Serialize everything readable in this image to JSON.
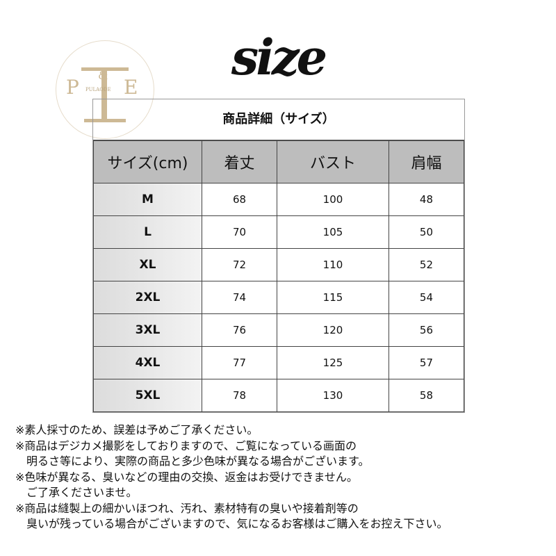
{
  "title": "size",
  "logo": {
    "letters": [
      "P",
      "&",
      "E"
    ],
    "brand": "PULAODE"
  },
  "table": {
    "caption": "商品詳細（サイズ）",
    "headers": [
      "サイズ(cm)",
      "着丈",
      "バスト",
      "肩幅"
    ],
    "rows": [
      [
        "M",
        "68",
        "100",
        "48"
      ],
      [
        "L",
        "70",
        "105",
        "50"
      ],
      [
        "XL",
        "72",
        "110",
        "52"
      ],
      [
        "2XL",
        "74",
        "115",
        "54"
      ],
      [
        "3XL",
        "76",
        "120",
        "56"
      ],
      [
        "4XL",
        "77",
        "125",
        "57"
      ],
      [
        "5XL",
        "78",
        "130",
        "58"
      ]
    ]
  },
  "notes": [
    "※素人採寸のため、誤差は予めご了承ください。",
    "※商品はデジカメ撮影をしておりますので、ご覧になっている画面の",
    "　明るさ等により、実際の商品と多少色味が異なる場合がございます。",
    "※色味が異なる、臭いなどの理由の交換、返金はお受けできません。",
    "　ご了承くださいませ。",
    "※商品は縫製上の細かいほつれ、汚れ、素材特有の臭いや接着剤等の",
    "　臭いが残っている場合がございますので、気になるお客様はご購入をお控え下さい。"
  ]
}
